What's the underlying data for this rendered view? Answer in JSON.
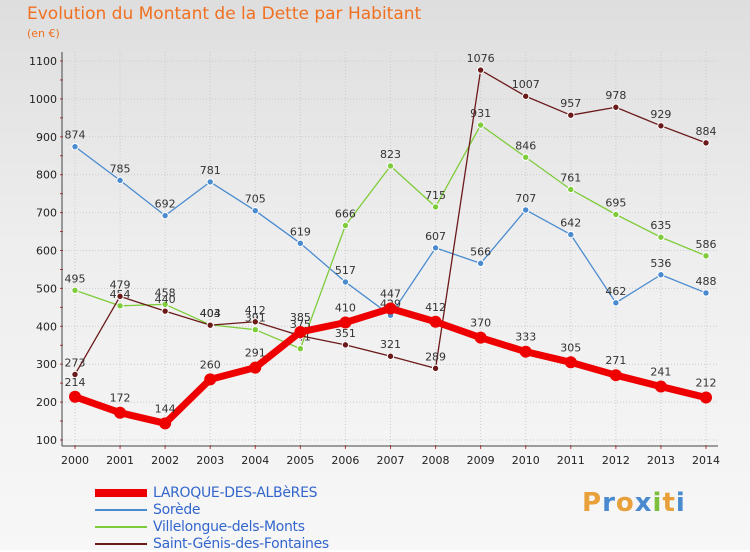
{
  "title": "Evolution du Montant de la Dette par Habitant",
  "unit_label": "(en €)",
  "logo": {
    "text": "Proxiti",
    "letters": [
      {
        "ch": "P",
        "color": "#e8a03a"
      },
      {
        "ch": "r",
        "color": "#4a8bd0"
      },
      {
        "ch": "o",
        "color": "#e8a03a"
      },
      {
        "ch": "x",
        "color": "#4a8bd0"
      },
      {
        "ch": "i",
        "color": "#7bbf3c"
      },
      {
        "ch": "t",
        "color": "#e8a03a"
      },
      {
        "ch": "i",
        "color": "#4a8bd0"
      }
    ]
  },
  "chart_data": {
    "type": "line",
    "title": "Evolution du Montant de la Dette par Habitant",
    "ylabel": "(en €)",
    "x": [
      "2000",
      "2001",
      "2002",
      "2003",
      "2004",
      "2005",
      "2006",
      "2007",
      "2008",
      "2009",
      "2010",
      "2011",
      "2012",
      "2013",
      "2014"
    ],
    "ylim": [
      100,
      1100
    ],
    "yticks": [
      100,
      200,
      300,
      400,
      500,
      600,
      700,
      800,
      900,
      1000,
      1100
    ],
    "grid": true,
    "legend_position": "bottom-left",
    "series": [
      {
        "name": "Sorède",
        "color": "#4a8bd0",
        "values": [
          874,
          785,
          692,
          781,
          705,
          619,
          517,
          429,
          607,
          566,
          707,
          642,
          462,
          536,
          488
        ]
      },
      {
        "name": "Villelongue-dels-Monts",
        "color": "#7fcc3a",
        "values": [
          495,
          454,
          458,
          404,
          391,
          341,
          666,
          823,
          715,
          931,
          846,
          761,
          695,
          635,
          586
        ]
      },
      {
        "name": "Saint-Génis-des-Fontaines",
        "color": "#6b1a1a",
        "values": [
          273,
          479,
          440,
          403,
          412,
          375,
          351,
          321,
          289,
          1076,
          1007,
          957,
          978,
          929,
          884
        ]
      },
      {
        "name": "LAROQUE-DES-ALBèRES",
        "color": "#ee0000",
        "values": [
          214,
          172,
          144,
          260,
          291,
          385,
          410,
          447,
          412,
          370,
          333,
          305,
          271,
          241,
          212
        ]
      }
    ]
  },
  "legend": [
    {
      "name": "LAROQUE-DES-ALBèRES",
      "color": "#ee0000",
      "thick": true
    },
    {
      "name": "Sorède",
      "color": "#4a8bd0",
      "thick": false
    },
    {
      "name": "Villelongue-dels-Monts",
      "color": "#7fcc3a",
      "thick": false
    },
    {
      "name": "Saint-Génis-des-Fontaines",
      "color": "#6b1a1a",
      "thick": false
    }
  ]
}
